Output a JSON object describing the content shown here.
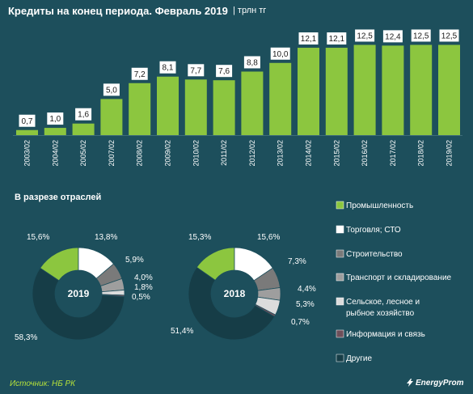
{
  "header": {
    "title": "Кредиты на конец периода. Февраль 2019",
    "unit": "| трлн тг"
  },
  "footer": {
    "source": "Источник: НБ РК",
    "brand": "EnergyProm"
  },
  "colors": {
    "background": "#1d4f5c",
    "bar": "#8cc63f",
    "value_box": "#ffffff"
  },
  "chart_data": [
    {
      "type": "bar",
      "categories": [
        "2003/02",
        "2004/02",
        "2005/02",
        "2007/02",
        "2008/02",
        "2009/02",
        "2010/02",
        "2011/02",
        "2012/02",
        "2013/02",
        "2014/02",
        "2015/02",
        "2016/02",
        "2017/02",
        "2018/02",
        "2019/02"
      ],
      "values": [
        0.7,
        1.0,
        1.6,
        5.0,
        7.2,
        8.1,
        7.7,
        7.6,
        8.8,
        10.0,
        12.1,
        12.1,
        12.5,
        12.4,
        12.5,
        12.5
      ],
      "value_labels": [
        "0,7",
        "1,0",
        "1,6",
        "5,0",
        "7,2",
        "8,1",
        "7,7",
        "7,6",
        "8,8",
        "10,0",
        "12,1",
        "12,1",
        "12,5",
        "12,4",
        "12,5",
        "12,5"
      ],
      "grid": false,
      "ylim": [
        0,
        13
      ]
    },
    {
      "type": "pie",
      "subtitle": "В разрезе отраслей",
      "center_label": "2019",
      "categories": [
        "Промышленность",
        "Торговля; СТО",
        "Строительство",
        "Транспорт и складирование",
        "Сельское, лесное и рыбное хозяйство",
        "Информация и связь",
        "Другие"
      ],
      "values": [
        15.6,
        13.8,
        5.9,
        4.0,
        1.8,
        0.5,
        58.3
      ],
      "value_labels": [
        "15,6%",
        "13,8%",
        "5,9%",
        "4,0%",
        "1,8%",
        "0,5%",
        "58,3%"
      ],
      "colors": [
        "#8cc63f",
        "#ffffff",
        "#7a7a7a",
        "#9e9e9e",
        "#dcdcdc",
        "#6e4f5a",
        "#163d47"
      ]
    },
    {
      "type": "pie",
      "center_label": "2018",
      "categories": [
        "Промышленность",
        "Торговля; СТО",
        "Строительство",
        "Транспорт и складирование",
        "Сельское, лесное и рыбное хозяйство",
        "Информация и связь",
        "Другие"
      ],
      "values": [
        15.3,
        15.6,
        7.3,
        4.4,
        5.3,
        0.7,
        51.4
      ],
      "value_labels": [
        "15,3%",
        "15,6%",
        "7,3%",
        "4,4%",
        "5,3%",
        "0,7%",
        "51,4%"
      ],
      "colors": [
        "#8cc63f",
        "#ffffff",
        "#7a7a7a",
        "#9e9e9e",
        "#dcdcdc",
        "#6e4f5a",
        "#163d47"
      ]
    }
  ],
  "legend": {
    "items": [
      {
        "label": "Промышленность",
        "color": "#8cc63f"
      },
      {
        "label": "Торговля; СТО",
        "color": "#ffffff"
      },
      {
        "label": "Строительство",
        "color": "#7a7a7a"
      },
      {
        "label": "Транспорт и складирование",
        "color": "#9e9e9e"
      },
      {
        "label_lines": [
          "Сельское, лесное и",
          "рыбное хозяйство"
        ],
        "color": "#dcdcdc"
      },
      {
        "label": "Информация и связь",
        "color": "#6e4f5a"
      },
      {
        "label": "Другие",
        "color": "#163d47"
      }
    ]
  }
}
